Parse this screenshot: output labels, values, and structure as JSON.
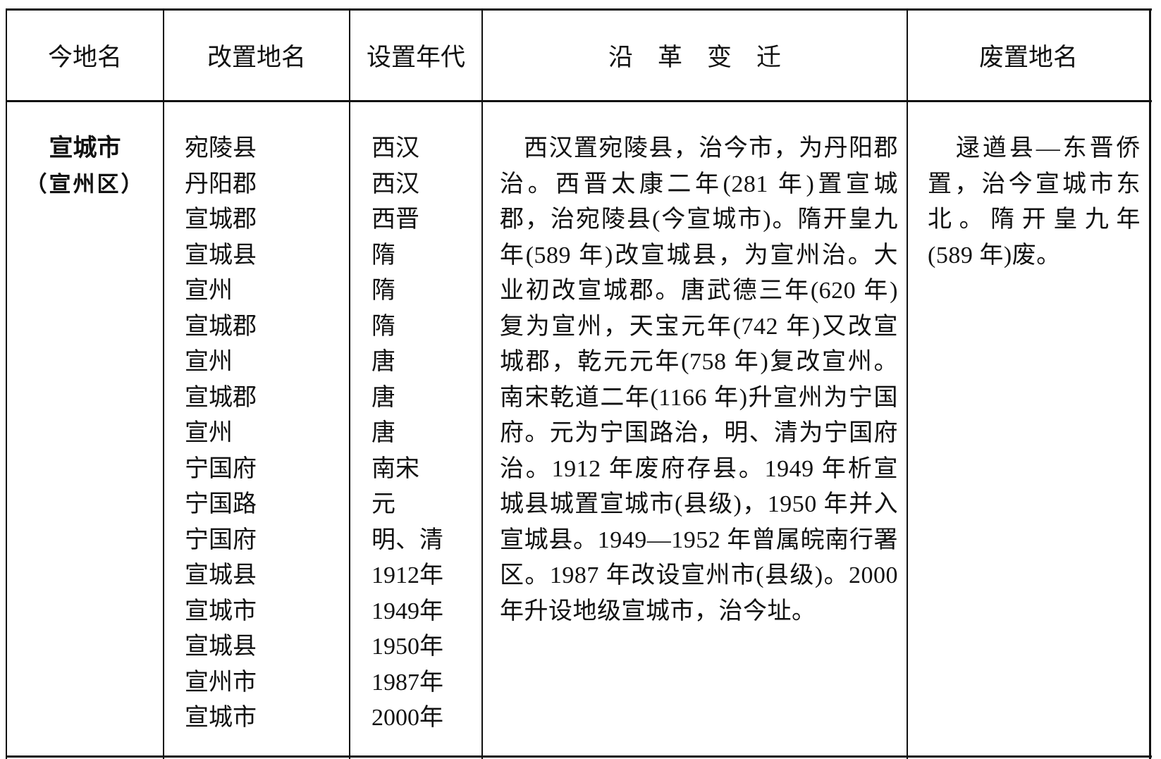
{
  "headers": [
    "今地名",
    "改置地名",
    "设置年代",
    "沿　革　变　迁",
    "废置地名"
  ],
  "row": {
    "current_name": "宣城市",
    "current_name_note": "（宣州区）",
    "renamed_places": [
      "宛陵县",
      "丹阳郡",
      "宣城郡",
      "宣城县",
      "宣州",
      "宣城郡",
      "宣州",
      "宣城郡",
      "宣州",
      "宁国府",
      "宁国路",
      "宁国府",
      "宣城县",
      "宣城市",
      "宣城县",
      "宣州市",
      "宣城市"
    ],
    "set_eras": [
      "西汉",
      "西汉",
      "西晋",
      "隋",
      "隋",
      "隋",
      "唐",
      "唐",
      "唐",
      "南宋",
      "元",
      "明、清",
      "1912年",
      "1949年",
      "1950年",
      "1987年",
      "2000年"
    ],
    "history": "西汉置宛陵县，治今市，为丹阳郡治。西晋太康二年(281 年)置宣城郡，治宛陵县(今宣城市)。隋开皇九年(589 年)改宣城县，为宣州治。大业初改宣城郡。唐武德三年(620 年)复为宣州，天宝元年(742 年)又改宣城郡，乾元元年(758 年)复改宣州。南宋乾道二年(1166 年)升宣州为宁国府。元为宁国路治，明、清为宁国府治。1912 年废府存县。1949 年析宣城县城置宣城市(县级)，1950 年并入宣城县。1949—1952 年曾属皖南行署区。1987 年改设宣州市(县级)。2000 年升设地级宣城市，治今址。",
    "abolished": "逯遒县—东晋侨置，治今宣城市东北。隋开皇九年(589 年)废。"
  }
}
